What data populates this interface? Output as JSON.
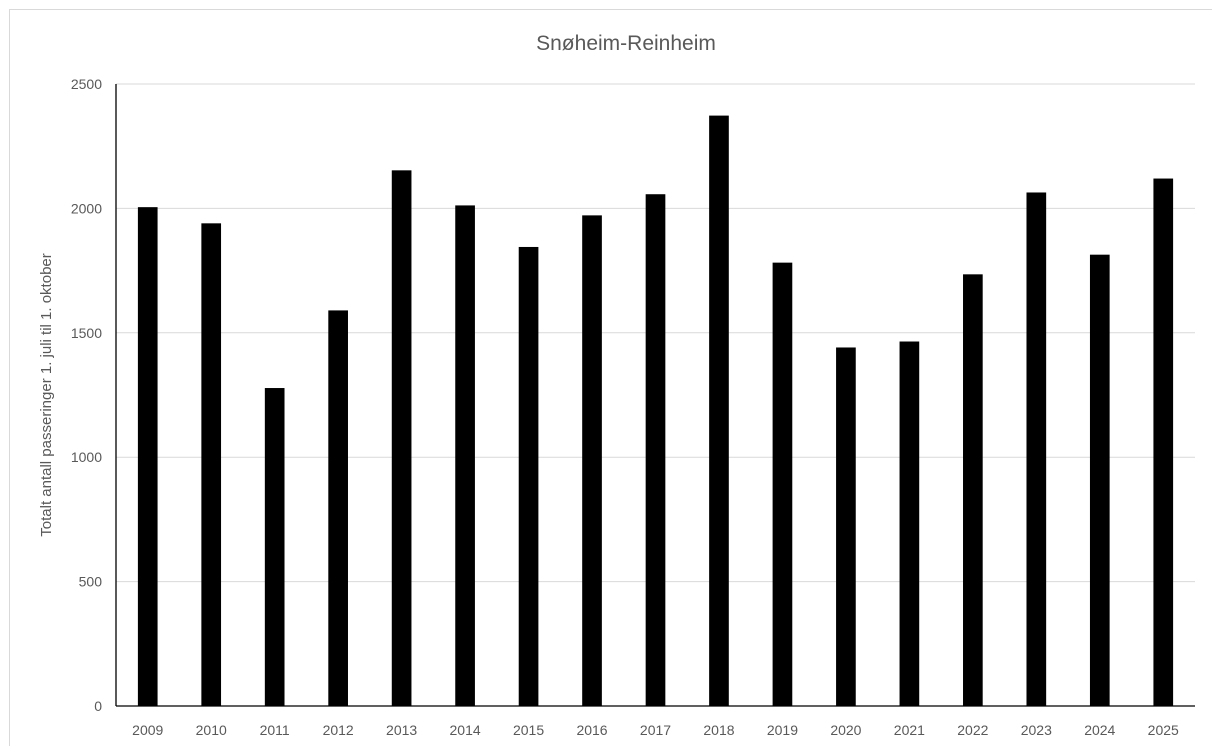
{
  "chart_data": {
    "type": "bar",
    "title": "Snøheim-Reinheim",
    "xlabel": "",
    "ylabel": "Totalt antall passeringer 1. juli til 1. oktober",
    "categories": [
      "2009",
      "2010",
      "2011",
      "2012",
      "2013",
      "2014",
      "2015",
      "2016",
      "2017",
      "2018",
      "2019",
      "2020",
      "2021",
      "2022",
      "2023",
      "2024",
      "2025"
    ],
    "values": [
      2005,
      1940,
      1278,
      1590,
      2153,
      2012,
      1845,
      1972,
      2057,
      2373,
      1782,
      1441,
      1465,
      1735,
      2064,
      1814,
      2120
    ],
    "ylim": [
      0,
      2500
    ],
    "yticks": [
      0,
      500,
      1000,
      1500,
      2000,
      2500
    ],
    "grid": true,
    "legend": "none",
    "bar_color": "#000000"
  }
}
